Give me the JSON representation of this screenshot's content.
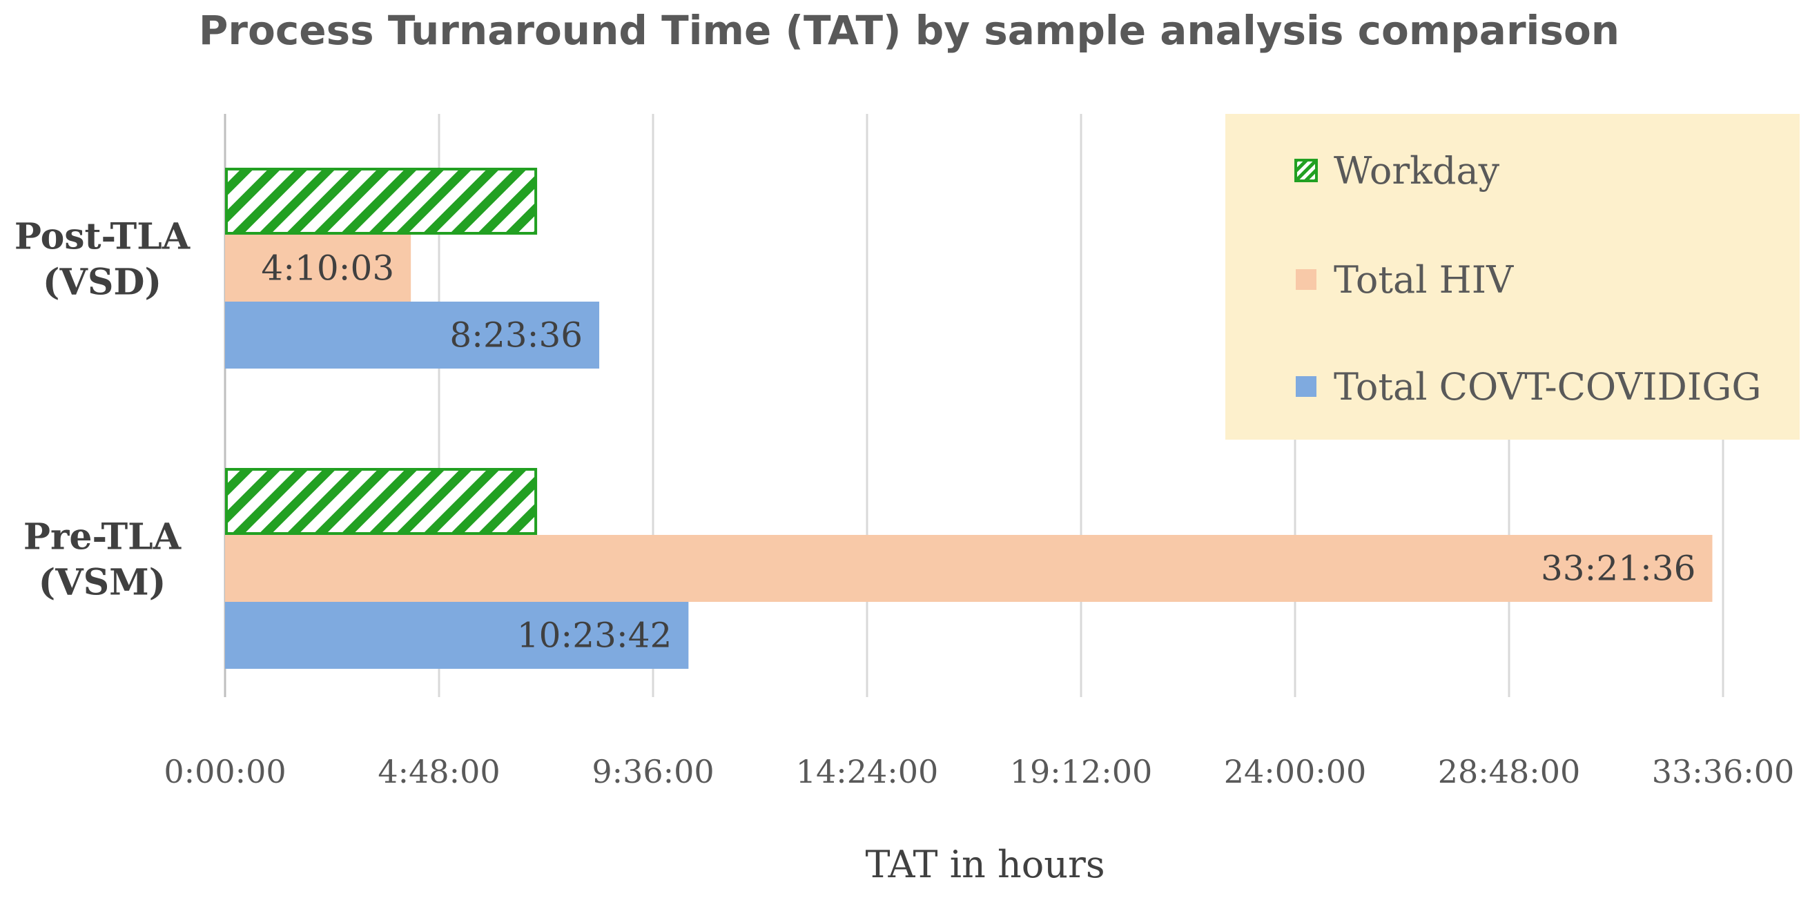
{
  "chart_data": {
    "type": "bar",
    "orientation": "horizontal",
    "title": "Process Turnaround Time (TAT) by sample analysis comparison",
    "xlabel": "TAT in hours",
    "ylabel": "",
    "categories": [
      "Post-TLA (VSD)",
      "Pre-TLA (VSM)"
    ],
    "category_lines": [
      [
        "Post-TLA",
        "(VSD)"
      ],
      [
        "Pre-TLA",
        "(VSM)"
      ]
    ],
    "xlim_hours": [
      0,
      33.6
    ],
    "x_ticks_hours": [
      0,
      4.8,
      9.6,
      14.4,
      19.2,
      24.0,
      28.8,
      33.6
    ],
    "x_tick_labels": [
      "0:00:00",
      "4:48:00",
      "9:36:00",
      "14:24:00",
      "19:12:00",
      "24:00:00",
      "28:48:00",
      "33:36:00"
    ],
    "grid": "vertical",
    "legend_position": "top-right",
    "legend_background": "#fdf0cc",
    "series": [
      {
        "name": "Workday",
        "color": "#22a022",
        "pattern": "diagonal-hatch",
        "values_hours": [
          7.0,
          7.0
        ],
        "labels": [
          "",
          ""
        ]
      },
      {
        "name": "Total HIV",
        "color": "#f8c9a8",
        "pattern": "solid",
        "values_hours": [
          4.1675,
          33.36
        ],
        "labels": [
          "4:10:03",
          "33:21:36"
        ]
      },
      {
        "name": "Total COVT-COVIDIGG",
        "color": "#7faadf",
        "pattern": "solid",
        "values_hours": [
          8.3933,
          10.395
        ],
        "labels": [
          "8:23:36",
          "10:23:42"
        ]
      }
    ]
  }
}
